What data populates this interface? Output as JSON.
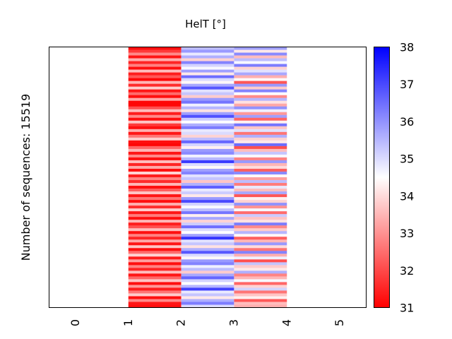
{
  "chart_data": {
    "type": "heatmap",
    "title": "HelT [°]",
    "xlabel": "",
    "ylabel": "Number of sequences: 15519",
    "xlim": [
      -0.5,
      5.5
    ],
    "x_ticks": [
      "0",
      "1",
      "2",
      "3",
      "4",
      "5"
    ],
    "colorbar": {
      "ticks": [
        "31",
        "32",
        "33",
        "34",
        "35",
        "36",
        "37",
        "38"
      ],
      "range": [
        31,
        38
      ],
      "cmap": "bwr_r",
      "low_color": "#ff0000",
      "mid_color": "#ffffff",
      "high_color": "#0000ff"
    },
    "columns": [
      {
        "x_start": 1,
        "x_end": 2,
        "values": [
          31.2,
          31.8,
          32.9,
          31.3,
          33.4,
          31.5,
          32.8,
          31.2,
          33.6,
          31.4,
          32.2,
          31.1,
          33.5,
          31.6,
          33.8,
          31.3,
          32.5,
          31.2,
          33.3,
          31.1,
          31.1,
          32.1,
          33.6,
          31.4,
          32.9,
          31.2,
          33.7,
          31.8,
          31.2,
          33.4,
          31.3,
          32.6,
          33.8,
          31.2,
          31.1,
          32.4,
          33.5,
          31.3,
          32.9,
          31.2,
          33.6,
          31.5,
          33.3,
          31.2,
          33.9,
          31.4,
          32.8,
          31.6,
          33.5,
          31.2,
          32.3,
          33.7,
          31.3,
          32.6,
          31.2,
          33.4,
          31.6,
          33.8,
          31.3,
          32.7,
          31.2,
          33.5,
          31.4,
          32.1,
          33.6,
          31.2,
          32.8,
          31.5,
          33.3,
          31.3,
          33.7,
          31.2,
          32.5,
          33.9,
          31.4,
          33.2,
          31.2,
          32.8,
          31.5,
          33.6,
          31.3,
          32.4,
          33.7,
          31.2,
          33.1,
          31.4,
          32.6,
          33.8,
          31.2,
          32.9,
          31.3,
          31.2
        ],
        "color": "#ff2020"
      },
      {
        "x_start": 2,
        "x_end": 3,
        "values": [
          35.4,
          35.9,
          34.8,
          35.6,
          33.9,
          36.2,
          35.1,
          34.6,
          35.8,
          34.2,
          36.5,
          35.0,
          34.4,
          35.7,
          36.8,
          34.9,
          35.3,
          33.8,
          35.9,
          36.4,
          34.7,
          35.5,
          34.1,
          35.8,
          36.9,
          35.2,
          34.5,
          35.6,
          36.3,
          34.8,
          35.0,
          33.9,
          35.4,
          36.6,
          35.1,
          34.3,
          35.9,
          36.1,
          34.7,
          35.5,
          37.2,
          35.0,
          34.4,
          35.8,
          36.2,
          34.9,
          35.3,
          33.7,
          35.6,
          36.7,
          34.8,
          35.2,
          34.2,
          35.9,
          37.0,
          35.1,
          34.6,
          35.4,
          36.4,
          34.3,
          35.7,
          33.9,
          35.2,
          36.5,
          35.0,
          34.5,
          35.8,
          37.3,
          34.9,
          35.3,
          34.1,
          35.6,
          36.8,
          35.0,
          34.4,
          35.9,
          36.2,
          34.7,
          35.4,
          33.8,
          35.7,
          36.6,
          35.1,
          34.5,
          35.5,
          37.1,
          34.8,
          35.3,
          34.2,
          35.6,
          36.3,
          35.0
        ],
        "color": "#a0a0ff"
      },
      {
        "x_start": 3,
        "x_end": 4,
        "values": [
          35.8,
          34.2,
          36.1,
          33.6,
          35.4,
          34.6,
          36.3,
          33.9,
          34.9,
          35.7,
          33.4,
          34.4,
          32.2,
          35.9,
          33.8,
          36.2,
          34.5,
          32.9,
          35.5,
          34.1,
          33.3,
          36.0,
          34.7,
          33.1,
          35.8,
          32.4,
          34.3,
          36.4,
          33.7,
          34.9,
          32.6,
          35.6,
          33.9,
          34.2,
          36.5,
          32.1,
          33.6,
          35.3,
          34.6,
          32.8,
          35.9,
          33.5,
          34.0,
          32.3,
          36.1,
          34.4,
          33.2,
          35.4,
          32.7,
          34.8,
          33.6,
          35.7,
          32.2,
          34.3,
          33.9,
          36.0,
          33.0,
          34.6,
          32.5,
          35.2,
          33.7,
          34.1,
          36.3,
          32.9,
          33.8,
          35.5,
          34.4,
          32.3,
          33.5,
          35.9,
          34.0,
          32.6,
          36.2,
          33.4,
          34.7,
          32.1,
          35.3,
          33.8,
          34.2,
          35.6,
          32.8,
          33.5,
          34.6,
          32.4,
          33.9,
          35.1,
          32.6,
          33.7,
          34.3,
          32.2,
          33.6,
          33.4
        ],
        "color": "#ffb0b0"
      }
    ]
  }
}
